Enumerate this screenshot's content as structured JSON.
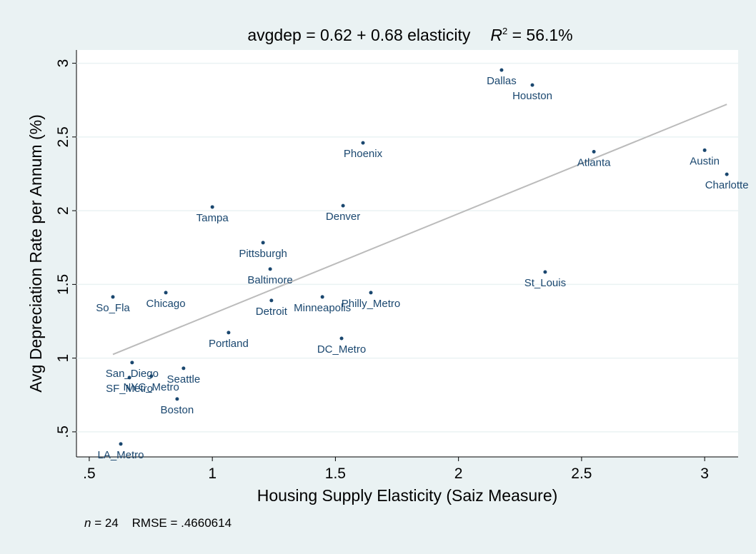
{
  "chart_data": {
    "type": "scatter",
    "title": "avgdep = 0.62 + 0.68 elasticity",
    "title_r": "R",
    "title_r_sup": "2",
    "title_r_value": " = 56.1%",
    "xlabel": "Housing Supply Elasticity (Saiz Measure)",
    "ylabel": "Avg Depreciation Rate per Annum (%)",
    "note_n": "n",
    "note_rest": " = 24    RMSE = .4660614",
    "fit": {
      "intercept": 0.62,
      "slope": 0.68,
      "color": "#bbbbbb"
    },
    "color": "#1a476f",
    "grid": true,
    "xlim": [
      0.448,
      3.136
    ],
    "ylim": [
      0.33,
      3.09
    ],
    "xticks": [
      {
        "value": 0.5,
        "label": ".5"
      },
      1,
      1.5,
      2,
      2.5,
      3
    ],
    "yticks": [
      {
        "value": 0.5,
        "label": ".5"
      },
      1,
      1.5,
      2,
      2.5,
      3
    ],
    "labels": [
      "Dallas",
      "Houston",
      "Phoenix",
      "Atlanta",
      "Austin",
      "Charlotte",
      "Tampa",
      "Denver",
      "Pittsburgh",
      "Baltimore",
      "St_Louis",
      "So_Fla",
      "Chicago",
      "Philly_Metro",
      "Minneapolis",
      "Detroit",
      "Portland",
      "DC_Metro",
      "San_Diego",
      "Seattle",
      "NYC_Metro",
      "SF_Metro",
      "Boston",
      "LA_Metro"
    ],
    "x": [
      2.175,
      2.3,
      1.612,
      2.55,
      3.0,
      3.09,
      1.0,
      1.531,
      1.206,
      1.235,
      2.352,
      0.596,
      0.811,
      1.644,
      1.447,
      1.24,
      1.066,
      1.525,
      0.674,
      0.883,
      0.752,
      0.663,
      0.857,
      0.628
    ],
    "values": [
      2.954,
      2.852,
      2.46,
      2.4,
      2.41,
      2.247,
      2.025,
      2.034,
      1.783,
      1.604,
      1.584,
      1.415,
      1.444,
      1.444,
      1.415,
      1.391,
      1.173,
      1.134,
      0.97,
      0.931,
      0.878,
      0.868,
      0.723,
      0.418
    ]
  }
}
